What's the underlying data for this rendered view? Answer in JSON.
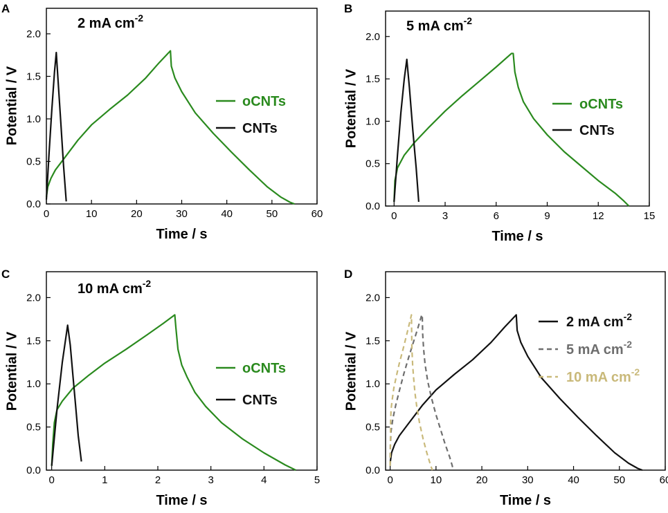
{
  "chart_data": [
    {
      "type": "line",
      "panel_label": "A",
      "annotation": {
        "main": "2 mA cm",
        "sup": "-2"
      },
      "xlabel": "Time / s",
      "ylabel": "Potential / V",
      "xlim": [
        0,
        60
      ],
      "ylim": [
        0,
        2.3
      ],
      "xticks": [
        0,
        10,
        20,
        30,
        40,
        50,
        60
      ],
      "yticks": [
        0.0,
        0.5,
        1.0,
        1.5,
        2.0
      ],
      "ytick_labels": [
        "0.0",
        "0.5",
        "1.0",
        "1.5",
        "2.0"
      ],
      "series": [
        {
          "name": "oCNTs",
          "color": "#2a8a1e",
          "dash": "",
          "x": [
            0,
            0.3,
            1,
            2,
            4,
            7,
            10,
            14,
            18,
            22,
            25,
            27.5,
            27.7,
            28.5,
            30,
            33,
            37,
            41,
            45,
            49,
            52,
            54,
            55
          ],
          "y": [
            0.08,
            0.2,
            0.3,
            0.4,
            0.54,
            0.75,
            0.93,
            1.11,
            1.28,
            1.48,
            1.66,
            1.8,
            1.62,
            1.48,
            1.32,
            1.07,
            0.83,
            0.61,
            0.4,
            0.2,
            0.08,
            0.02,
            0.0
          ]
        },
        {
          "name": "CNTs",
          "color": "#111111",
          "dash": "",
          "x": [
            0,
            0.6,
            1.2,
            1.8,
            2.2,
            2.6,
            3.2,
            3.8,
            4.4
          ],
          "y": [
            0.05,
            0.6,
            1.1,
            1.55,
            1.78,
            1.45,
            0.95,
            0.45,
            0.03
          ]
        }
      ],
      "legend": [
        {
          "label": "oCNTs",
          "color": "#2a8a1e",
          "dash": ""
        },
        {
          "label": "CNTs",
          "color": "#111111",
          "dash": ""
        }
      ]
    },
    {
      "type": "line",
      "panel_label": "B",
      "annotation": {
        "main": "5 mA cm",
        "sup": "-2"
      },
      "xlabel": "Time / s",
      "ylabel": "Potential / V",
      "xlim": [
        -0.5,
        15
      ],
      "ylim": [
        0,
        2.3
      ],
      "xticks": [
        0,
        3,
        6,
        9,
        12,
        15
      ],
      "yticks": [
        0.0,
        0.5,
        1.0,
        1.5,
        2.0
      ],
      "ytick_labels": [
        "0.0",
        "0.5",
        "1.0",
        "1.5",
        "2.0"
      ],
      "series": [
        {
          "name": "oCNTs",
          "color": "#2a8a1e",
          "dash": "",
          "x": [
            0,
            0.05,
            0.2,
            0.6,
            1.2,
            2,
            3,
            4,
            5,
            6,
            6.9,
            7.0,
            7.1,
            7.3,
            7.6,
            8.2,
            9,
            10,
            11,
            12,
            13,
            13.5,
            13.8
          ],
          "y": [
            0.05,
            0.3,
            0.45,
            0.6,
            0.75,
            0.92,
            1.12,
            1.3,
            1.47,
            1.64,
            1.8,
            1.8,
            1.58,
            1.4,
            1.23,
            1.03,
            0.84,
            0.64,
            0.47,
            0.3,
            0.15,
            0.06,
            0.0
          ]
        },
        {
          "name": "CNTs",
          "color": "#111111",
          "dash": "",
          "x": [
            0,
            0.2,
            0.4,
            0.6,
            0.75,
            0.9,
            1.1,
            1.3,
            1.45
          ],
          "y": [
            0.05,
            0.6,
            1.1,
            1.5,
            1.73,
            1.4,
            0.9,
            0.45,
            0.05
          ]
        }
      ],
      "legend": [
        {
          "label": "oCNTs",
          "color": "#2a8a1e",
          "dash": ""
        },
        {
          "label": "CNTs",
          "color": "#111111",
          "dash": ""
        }
      ]
    },
    {
      "type": "line",
      "panel_label": "C",
      "annotation": {
        "main": "10 mA cm",
        "sup": "-2"
      },
      "xlabel": "Time / s",
      "ylabel": "Potential / V",
      "xlim": [
        -0.1,
        5
      ],
      "ylim": [
        0,
        2.3
      ],
      "xticks": [
        0,
        1,
        2,
        3,
        4,
        5
      ],
      "yticks": [
        0.0,
        0.5,
        1.0,
        1.5,
        2.0
      ],
      "ytick_labels": [
        "0.0",
        "0.5",
        "1.0",
        "1.5",
        "2.0"
      ],
      "series": [
        {
          "name": "oCNTs",
          "color": "#2a8a1e",
          "dash": "",
          "x": [
            0,
            0.02,
            0.05,
            0.1,
            0.2,
            0.4,
            0.7,
            1.0,
            1.4,
            1.8,
            2.1,
            2.32,
            2.34,
            2.38,
            2.45,
            2.55,
            2.7,
            2.9,
            3.2,
            3.6,
            4.0,
            4.4,
            4.6
          ],
          "y": [
            0.05,
            0.3,
            0.55,
            0.7,
            0.8,
            0.95,
            1.1,
            1.24,
            1.4,
            1.57,
            1.7,
            1.8,
            1.65,
            1.4,
            1.22,
            1.08,
            0.9,
            0.74,
            0.55,
            0.36,
            0.2,
            0.06,
            0.0
          ]
        },
        {
          "name": "CNTs",
          "color": "#111111",
          "dash": "",
          "x": [
            0,
            0.1,
            0.2,
            0.3,
            0.35,
            0.4,
            0.45,
            0.5,
            0.56
          ],
          "y": [
            0.05,
            0.7,
            1.25,
            1.68,
            1.45,
            1.1,
            0.75,
            0.4,
            0.1
          ]
        }
      ],
      "legend": [
        {
          "label": "oCNTs",
          "color": "#2a8a1e",
          "dash": ""
        },
        {
          "label": "CNTs",
          "color": "#111111",
          "dash": ""
        }
      ]
    },
    {
      "type": "line",
      "panel_label": "D",
      "annotation": null,
      "xlabel": "Time / s",
      "ylabel": "Potential / V",
      "xlim": [
        -1,
        60
      ],
      "ylim": [
        0,
        2.3
      ],
      "xticks": [
        0,
        10,
        20,
        30,
        40,
        50,
        60
      ],
      "yticks": [
        0.0,
        0.5,
        1.0,
        1.5,
        2.0
      ],
      "ytick_labels": [
        "0.0",
        "0.5",
        "1.0",
        "1.5",
        "2.0"
      ],
      "series": [
        {
          "name": "2 mA cm-2",
          "color": "#111111",
          "dash": "",
          "x": [
            0,
            0.3,
            1,
            2,
            4,
            7,
            10,
            14,
            18,
            22,
            25,
            27.5,
            27.7,
            28.5,
            30,
            33,
            37,
            41,
            45,
            49,
            52,
            54,
            55
          ],
          "y": [
            0.08,
            0.2,
            0.3,
            0.4,
            0.54,
            0.75,
            0.93,
            1.11,
            1.28,
            1.48,
            1.66,
            1.8,
            1.62,
            1.48,
            1.32,
            1.07,
            0.83,
            0.61,
            0.4,
            0.2,
            0.08,
            0.02,
            0.0
          ]
        },
        {
          "name": "5 mA cm-2",
          "color": "#6e6e6e",
          "dash": "7,5",
          "x": [
            0,
            0.05,
            0.2,
            0.6,
            1.2,
            2,
            3,
            4,
            5,
            6,
            6.9,
            7.0,
            7.1,
            7.3,
            7.6,
            8.2,
            9,
            10,
            11,
            12,
            13,
            13.5,
            13.8
          ],
          "y": [
            0.05,
            0.3,
            0.45,
            0.6,
            0.75,
            0.92,
            1.12,
            1.3,
            1.47,
            1.64,
            1.8,
            1.8,
            1.58,
            1.4,
            1.23,
            1.03,
            0.84,
            0.64,
            0.47,
            0.3,
            0.15,
            0.06,
            0.0
          ]
        },
        {
          "name": "10 mA cm-2",
          "color": "#c9b97a",
          "dash": "7,5",
          "x": [
            0,
            0.05,
            0.1,
            0.2,
            0.4,
            0.8,
            1.4,
            2.0,
            2.8,
            3.6,
            4.2,
            4.64,
            4.68,
            4.76,
            4.9,
            5.1,
            5.4,
            5.8,
            6.4,
            7.2,
            8.0,
            8.8,
            9.2
          ],
          "y": [
            0.05,
            0.3,
            0.55,
            0.7,
            0.8,
            0.95,
            1.1,
            1.24,
            1.4,
            1.57,
            1.7,
            1.8,
            1.65,
            1.4,
            1.22,
            1.08,
            0.9,
            0.74,
            0.55,
            0.36,
            0.2,
            0.06,
            0.0
          ]
        }
      ],
      "legend": [
        {
          "label": "2 mA cm",
          "sup": "-2",
          "color": "#111111",
          "dash": ""
        },
        {
          "label": "5 mA cm",
          "sup": "-2",
          "color": "#6e6e6e",
          "dash": "7,5"
        },
        {
          "label": "10 mA cm",
          "sup": "-2",
          "color": "#c9b97a",
          "dash": "7,5"
        }
      ]
    }
  ]
}
